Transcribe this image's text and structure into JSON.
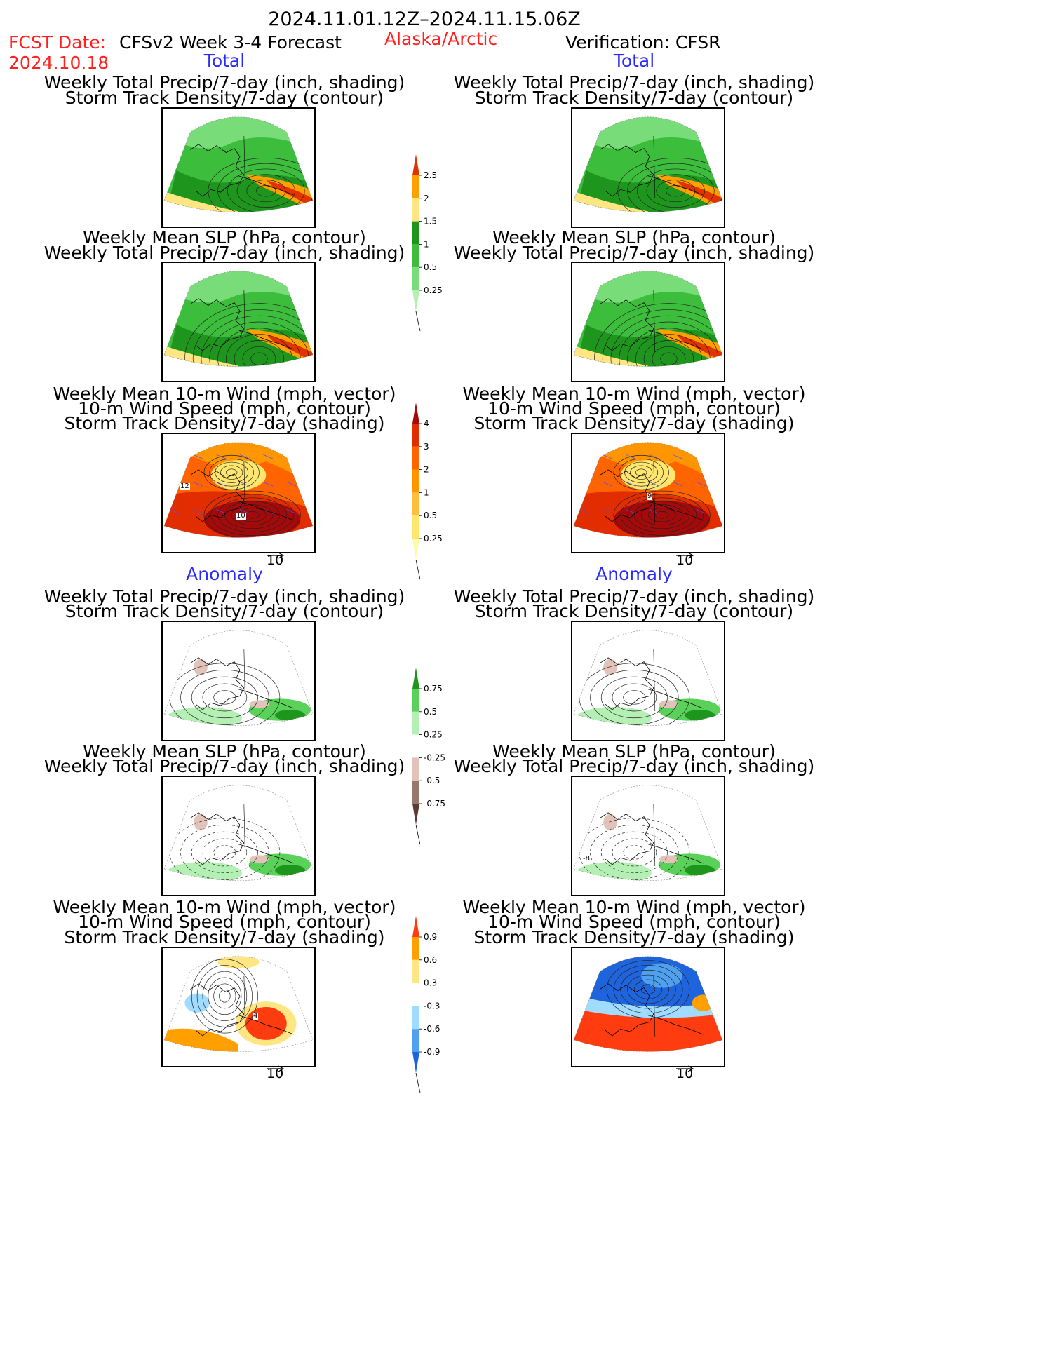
{
  "header": {
    "period": "2024.11.01.12Z–2024.11.15.06Z",
    "fcst_label": "FCST Date:",
    "fcst_date": "2024.10.18",
    "forecast_title": "CFSv2 Week 3-4 Forecast",
    "region": "Alaska/Arctic",
    "verification": "Verification: CFSR"
  },
  "sections": {
    "total": "Total",
    "anomaly": "Anomaly"
  },
  "titles": {
    "precip_storm": [
      "Weekly Total Precip/7-day (inch, shading)",
      "Storm Track Density/7-day (contour)"
    ],
    "slp_precip": [
      "Weekly Mean SLP (hPa, contour)",
      "Weekly Total Precip/7-day (inch, shading)"
    ],
    "wind": [
      "Weekly Mean 10-m Wind (mph, vector)",
      "10-m Wind Speed (mph, contour)",
      "Storm Track Density/7-day (shading)"
    ]
  },
  "vector_ref": "10",
  "panel_labels": {
    "fw_1": "12",
    "fw_2": "10",
    "vw_1": "9",
    "fwa_1": "4",
    "vsa_1": "-8"
  },
  "chart_data": [
    {
      "type": "heatmap",
      "name": "precip_total",
      "colorbar": {
        "levels": [
          "0.25",
          "0.5",
          "1",
          "1.5",
          "2",
          "2.5"
        ],
        "colors": [
          "#b4f0b4",
          "#78dc78",
          "#3cbe3c",
          "#1e961e",
          "#ffe682",
          "#ffa000",
          "#e13200"
        ]
      }
    },
    {
      "type": "heatmap",
      "name": "storm_density_total",
      "colorbar": {
        "levels": [
          "0.25",
          "0.5",
          "1",
          "2",
          "3",
          "4"
        ],
        "colors": [
          "#fffaaa",
          "#ffe66e",
          "#ffbe3c",
          "#ff9600",
          "#ff6400",
          "#e12d00",
          "#a50a0a"
        ]
      }
    },
    {
      "type": "heatmap",
      "name": "precip_anomaly",
      "colorbar": {
        "levels": [
          "-0.75",
          "-0.5",
          "-0.25",
          "0.25",
          "0.5",
          "0.75"
        ],
        "colors": [
          "#5a3c32",
          "#96786e",
          "#e1c3b9",
          "#ffffff",
          "#b4f0b4",
          "#5ad25a",
          "#1e961e"
        ]
      }
    },
    {
      "type": "heatmap",
      "name": "storm_density_anomaly",
      "colorbar": {
        "levels": [
          "-0.9",
          "-0.6",
          "-0.3",
          "0.3",
          "0.6",
          "0.9"
        ],
        "colors": [
          "#1e64dc",
          "#50a0f0",
          "#a0dcff",
          "#ffffff",
          "#ffe682",
          "#ffa000",
          "#ff3c0f"
        ]
      }
    }
  ]
}
